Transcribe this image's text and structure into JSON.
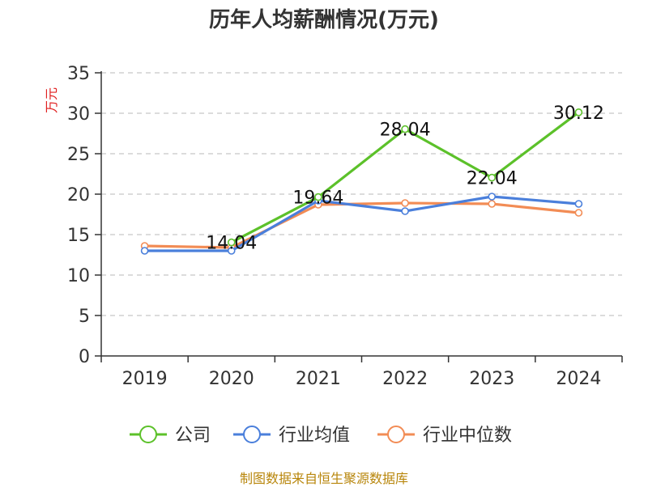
{
  "chart_data": {
    "type": "line",
    "title": "历年人均薪酬情况(万元)",
    "ylabel": "万元",
    "xlabel": "",
    "categories": [
      "2019",
      "2020",
      "2021",
      "2022",
      "2023",
      "2024"
    ],
    "y_ticks": [
      "0",
      "5",
      "10",
      "15",
      "20",
      "25",
      "30",
      "35"
    ],
    "ylim": [
      0,
      35
    ],
    "grid": "horizontal-dashed",
    "legend_position": "bottom",
    "series": [
      {
        "name": "公司",
        "color": "#5cc12a",
        "values": [
          null,
          14.04,
          19.64,
          28.04,
          22.04,
          30.12
        ],
        "data_labels": [
          null,
          "14.04",
          "19.64",
          "28.04",
          "22.04",
          "30.12"
        ]
      },
      {
        "name": "行业均值",
        "color": "#4a7fdb",
        "values": [
          13.0,
          13.0,
          19.2,
          17.9,
          19.7,
          18.8
        ]
      },
      {
        "name": "行业中位数",
        "color": "#f28c55",
        "values": [
          13.6,
          13.4,
          18.7,
          18.9,
          18.8,
          17.7
        ]
      }
    ]
  },
  "source": "制图数据来自恒生聚源数据库"
}
